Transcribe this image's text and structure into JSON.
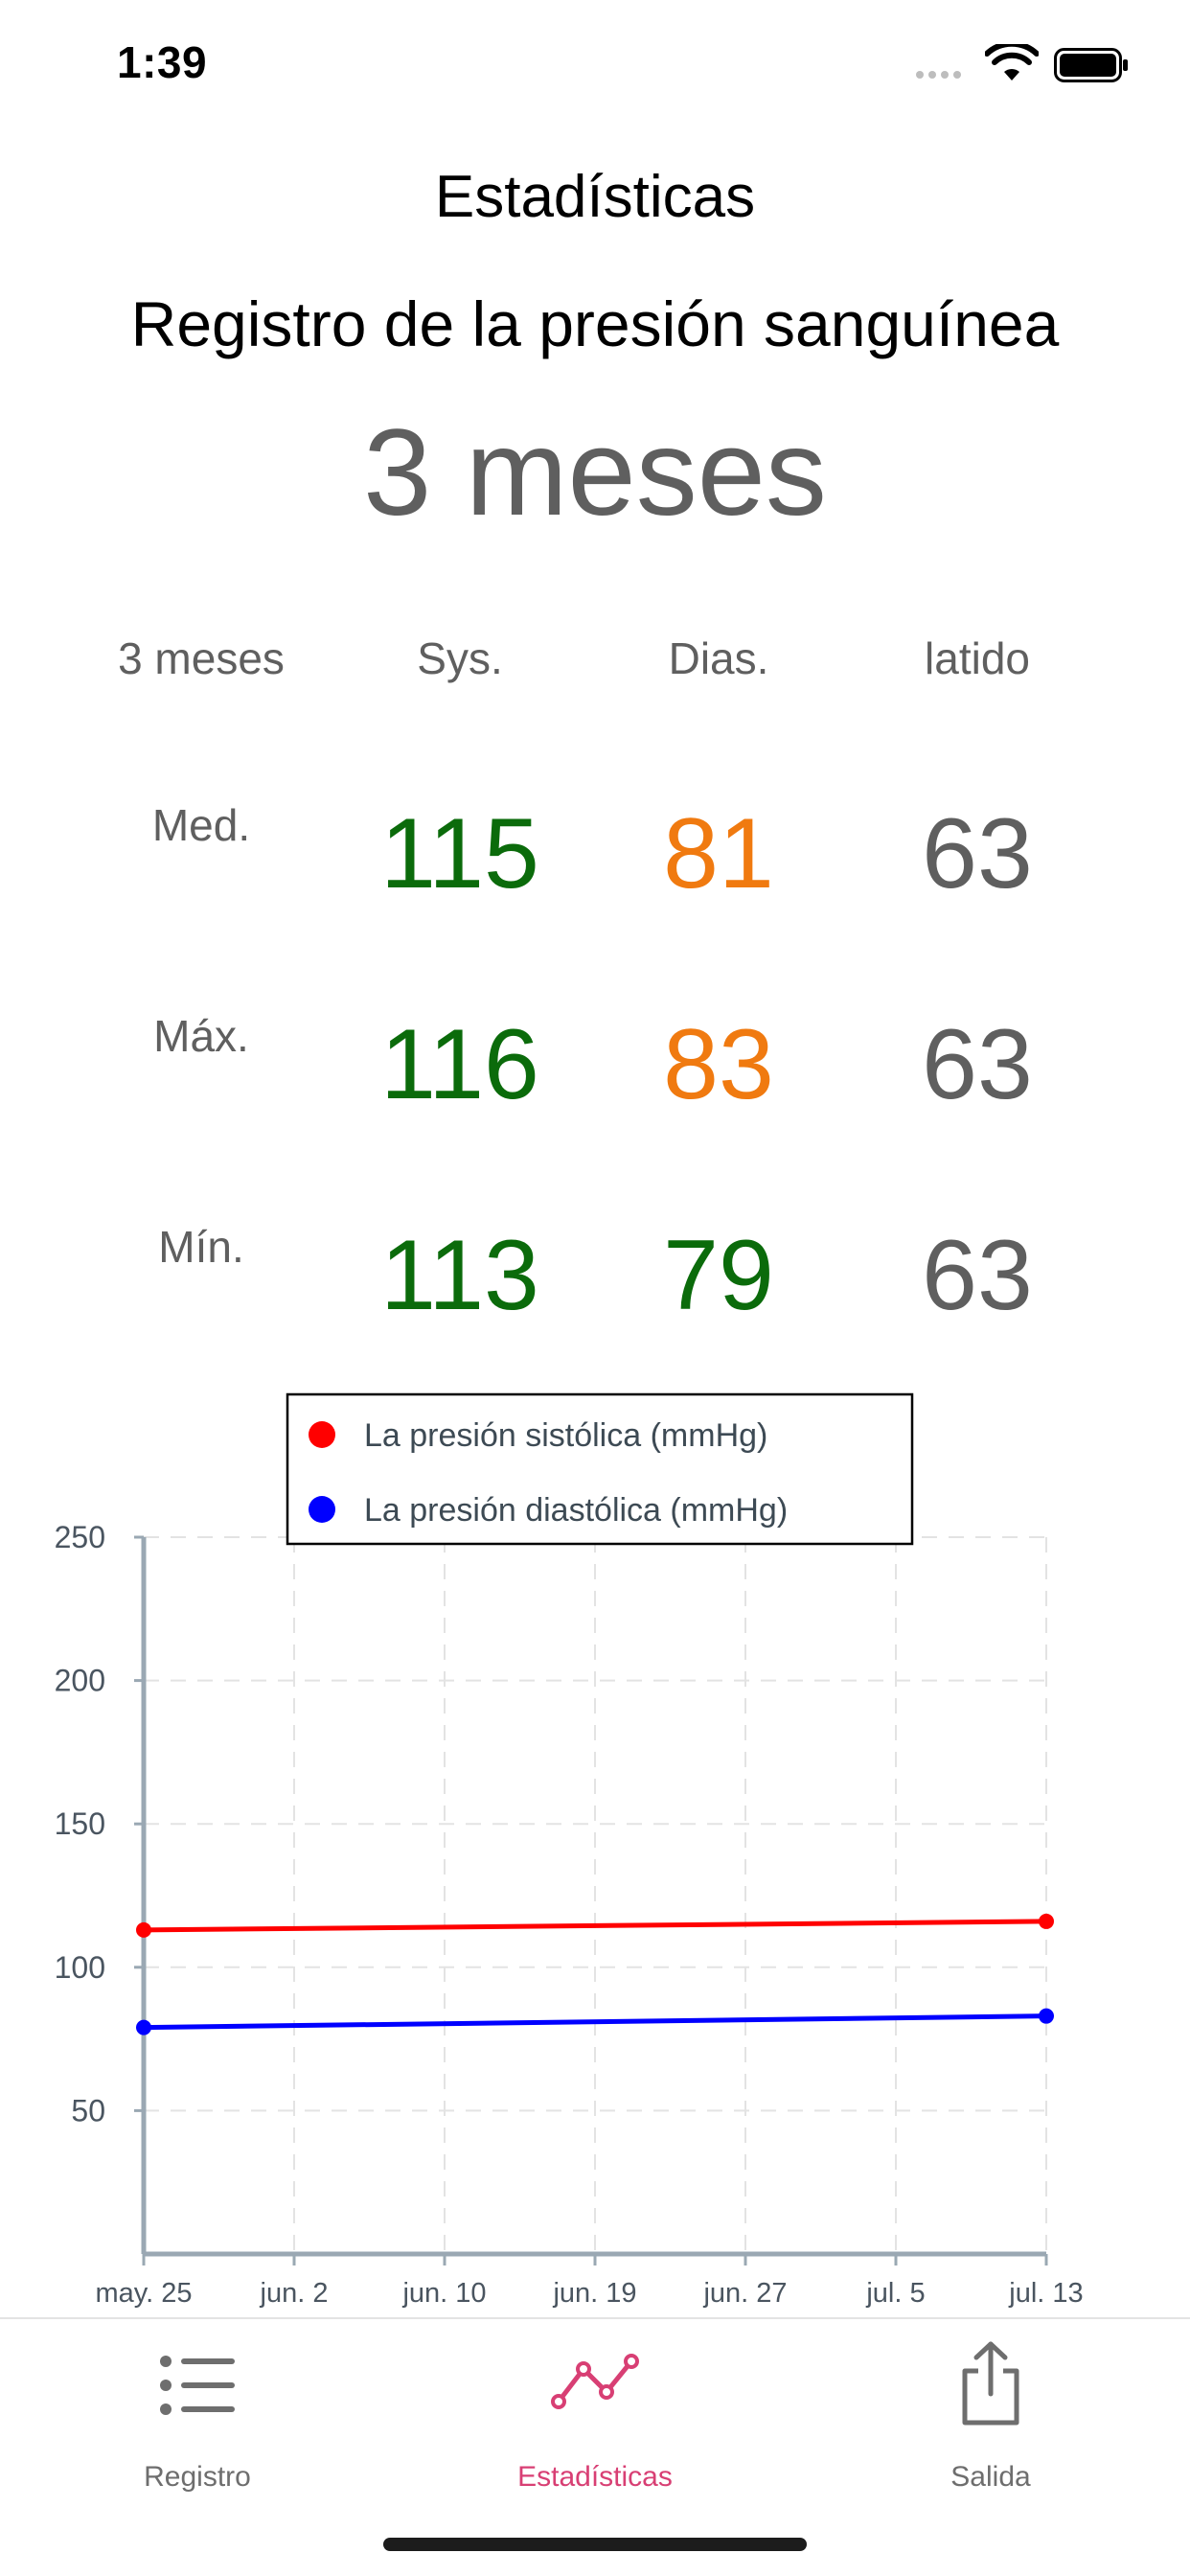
{
  "status": {
    "time": "1:39"
  },
  "nav": {
    "title": "Estadísticas"
  },
  "page": {
    "subtitle": "Registro de la presión sanguínea",
    "period": "3 meses"
  },
  "stats": {
    "headers": [
      "3 meses",
      "Sys.",
      "Dias.",
      "latido"
    ],
    "rows": [
      {
        "label": "Med.",
        "sys": "115",
        "dias": "81",
        "pulse": "63"
      },
      {
        "label": "Máx.",
        "sys": "116",
        "dias": "83",
        "pulse": "63"
      },
      {
        "label": "Mín.",
        "sys": "113",
        "dias": "79",
        "pulse": "63"
      }
    ],
    "colors": {
      "normal": "#0b6b0b",
      "elevated": "#f07a10",
      "neutral": "#5f5f5f"
    }
  },
  "chart_data": {
    "type": "line",
    "x": [
      "may. 25",
      "jul. 13"
    ],
    "x_ticks": [
      "may. 25",
      "jun. 2",
      "jun. 10",
      "jun. 19",
      "jun. 27",
      "jul. 5",
      "jul. 13"
    ],
    "y_ticks": [
      50,
      100,
      150,
      200,
      250
    ],
    "ylim": [
      0,
      250
    ],
    "grid": true,
    "legend_placement": "top-center",
    "series": [
      {
        "name": "La presión sistólica (mmHg)",
        "values": [
          113,
          116
        ],
        "color": "#ff0000"
      },
      {
        "name": "La presión diastólica (mmHg)",
        "values": [
          79,
          83
        ],
        "color": "#0000ff"
      }
    ]
  },
  "tabs": [
    {
      "label": "Registro",
      "icon": "list-icon",
      "active": false
    },
    {
      "label": "Estadísticas",
      "icon": "chart-line-icon",
      "active": true
    },
    {
      "label": "Salida",
      "icon": "share-icon",
      "active": false
    }
  ]
}
